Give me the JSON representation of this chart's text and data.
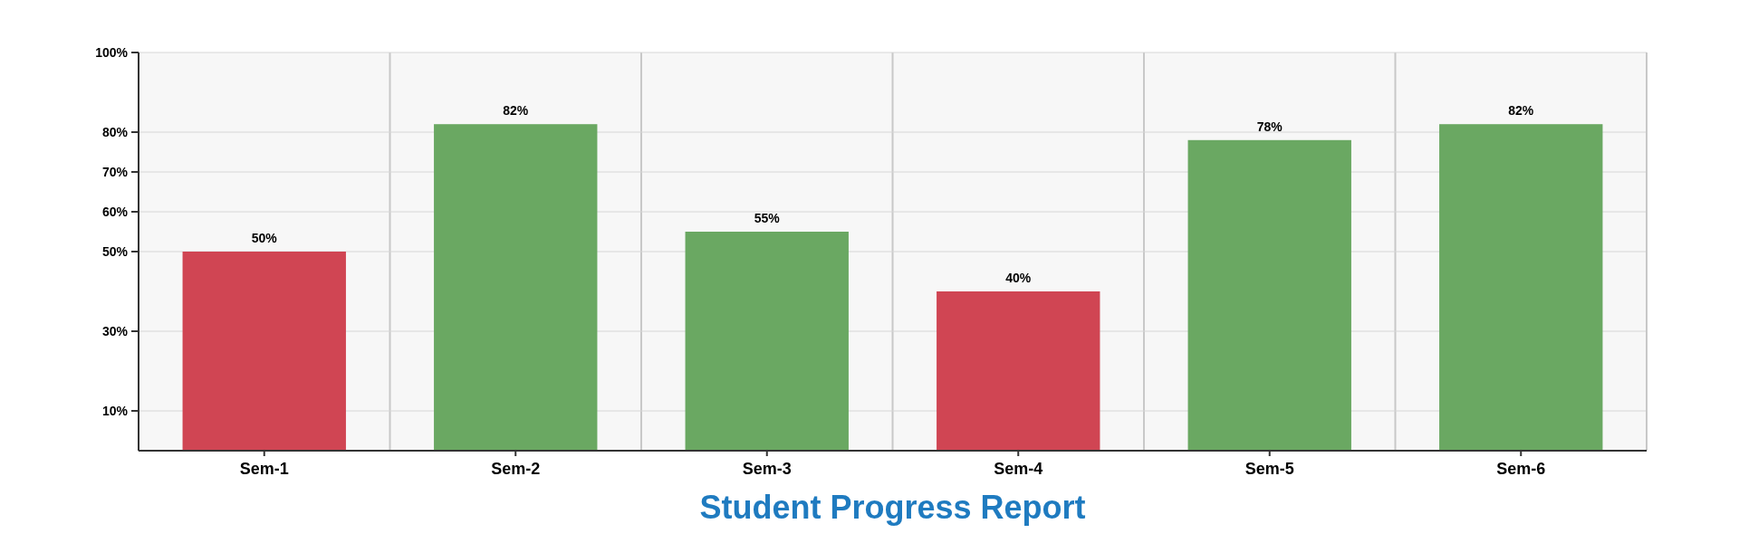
{
  "chart_data": {
    "type": "bar",
    "title": "Student Progress Report",
    "categories": [
      "Sem-1",
      "Sem-2",
      "Sem-3",
      "Sem-4",
      "Sem-5",
      "Sem-6"
    ],
    "values": [
      50,
      82,
      55,
      40,
      78,
      82
    ],
    "colors": [
      "#d04553",
      "#6aa862",
      "#6aa862",
      "#d04553",
      "#6aa862",
      "#6aa862"
    ],
    "value_labels": [
      "50%",
      "82%",
      "55%",
      "40%",
      "78%",
      "82%"
    ],
    "ylim": [
      0,
      100
    ],
    "yticks": [
      {
        "value": 10,
        "label": "10%"
      },
      {
        "value": 30,
        "label": "30%"
      },
      {
        "value": 50,
        "label": "50%"
      },
      {
        "value": 60,
        "label": "60%"
      },
      {
        "value": 70,
        "label": "70%"
      },
      {
        "value": 80,
        "label": "80%"
      },
      {
        "value": 100,
        "label": "100%"
      }
    ],
    "grid": true
  }
}
